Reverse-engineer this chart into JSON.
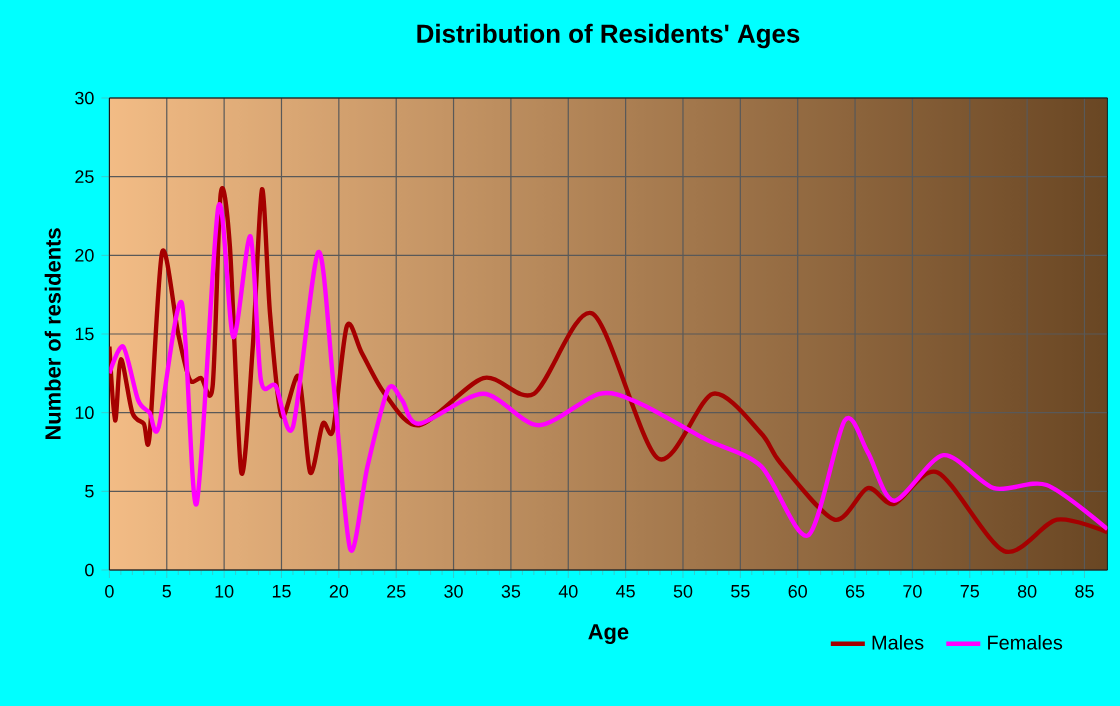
{
  "chart_data": {
    "type": "line",
    "title": "Distribution of Residents' Ages",
    "xlabel": "Age",
    "ylabel": "Number of residents",
    "xlim": [
      0,
      87
    ],
    "xticks": [
      0,
      5,
      10,
      15,
      20,
      25,
      30,
      35,
      40,
      45,
      50,
      55,
      60,
      65,
      70,
      75,
      80,
      85
    ],
    "ylim": [
      0,
      30
    ],
    "yticks": [
      0,
      5,
      10,
      15,
      20,
      25,
      30
    ],
    "grid": true,
    "legend": "bottom right",
    "series": [
      {
        "name": "Males",
        "color": "#a50000",
        "x": [
          0,
          0.5,
          1,
          2,
          3,
          3.5,
          4.6,
          6,
          7,
          8,
          9,
          9.7,
          10.5,
          11.5,
          12.5,
          13.3,
          14,
          15,
          16.5,
          17.5,
          18.6,
          19.5,
          20.7,
          22,
          24,
          27,
          32.6,
          37,
          42.1,
          47.8,
          52.6,
          56.8,
          58.5,
          63.2,
          66.1,
          68.4,
          72.2,
          78,
          82.6,
          87
        ],
        "values": [
          14.2,
          9.5,
          13.4,
          10,
          9.3,
          8.5,
          20.2,
          15,
          12.1,
          12.2,
          11.7,
          23.9,
          20.6,
          6.2,
          14.2,
          24.2,
          16.3,
          9.8,
          12.3,
          6.2,
          9.3,
          8.9,
          15.5,
          13.8,
          11.2,
          9.2,
          12.2,
          11.2,
          16.3,
          7.1,
          11.2,
          8.7,
          6.8,
          3.2,
          5.2,
          4.2,
          6.2,
          1.2,
          3.2,
          2.4
        ]
      },
      {
        "name": "Females",
        "color": "#ff00ff",
        "x": [
          0,
          1.2,
          2.5,
          3.5,
          4.3,
          6.3,
          7.6,
          9.5,
          10.8,
          12.3,
          13.2,
          14.5,
          16,
          18.2,
          19.5,
          21,
          22.5,
          24.3,
          25.5,
          27,
          32.6,
          37.4,
          42.7,
          46.2,
          52,
          56.8,
          60.9,
          64.1,
          66.1,
          68.4,
          72.7,
          77.1,
          81.7,
          87
        ],
        "values": [
          12.5,
          14.2,
          10.8,
          10,
          9.1,
          17,
          4.2,
          23.1,
          14.8,
          21.2,
          12.1,
          11.7,
          9.1,
          20.2,
          12.1,
          1.3,
          6.6,
          11.5,
          10.8,
          9.3,
          11.2,
          9.2,
          11.2,
          10.6,
          8.3,
          6.6,
          2.2,
          9.5,
          7.5,
          4.4,
          7.3,
          5.2,
          5.4,
          2.6
        ]
      }
    ]
  }
}
